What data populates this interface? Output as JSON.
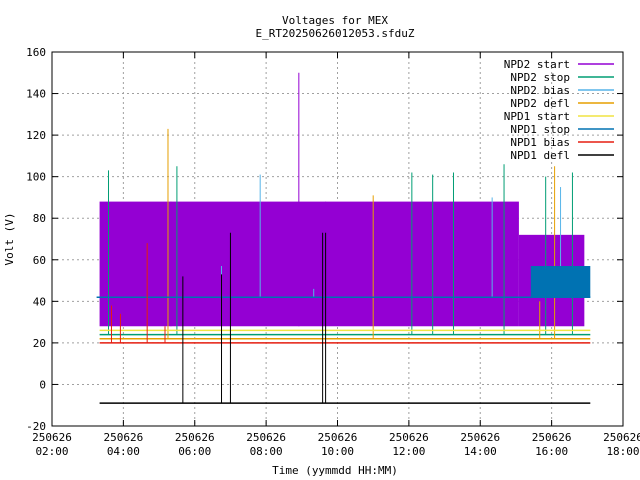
{
  "chart_data": {
    "type": "line",
    "title": "Voltages for MEX",
    "subtitle": "E_RT20250626012053.sfduZ",
    "xlabel": "Time (yymmdd HH:MM)",
    "ylabel": "Volt (V)",
    "xlim": [
      "250626 02:00",
      "250626 18:00"
    ],
    "ylim": [
      -20,
      160
    ],
    "grid": true,
    "legend_position": "top-right",
    "y_ticks": [
      "-20",
      "0",
      "20",
      "40",
      "60",
      "80",
      "100",
      "120",
      "140",
      "160"
    ],
    "x_ticks": [
      {
        "date": "250626",
        "time": "02:00"
      },
      {
        "date": "250626",
        "time": "04:00"
      },
      {
        "date": "250626",
        "time": "06:00"
      },
      {
        "date": "250626",
        "time": "08:00"
      },
      {
        "date": "250626",
        "time": "10:00"
      },
      {
        "date": "250626",
        "time": "12:00"
      },
      {
        "date": "250626",
        "time": "14:00"
      },
      {
        "date": "250626",
        "time": "16:00"
      },
      {
        "date": "250626",
        "time": "18:00"
      }
    ],
    "series": [
      {
        "name": "NPD2 start",
        "color": "#9400d3",
        "bands": [
          {
            "from": "03:20",
            "to": "15:05",
            "low": 28,
            "high": 88
          },
          {
            "from": "15:05",
            "to": "16:55",
            "low": 28,
            "high": 72
          }
        ],
        "spikes": [
          {
            "t": "08:55",
            "v": 150
          },
          {
            "t": "05:20",
            "v": 88
          },
          {
            "t": "09:40",
            "v": 88
          }
        ]
      },
      {
        "name": "NPD2 stop",
        "color": "#009e73",
        "baseline": [
          {
            "t": "03:20",
            "v": 24
          },
          {
            "t": "17:05",
            "v": 24
          }
        ],
        "spikes": [
          {
            "t": "03:35",
            "v": 103
          },
          {
            "t": "05:30",
            "v": 105
          },
          {
            "t": "12:05",
            "v": 102
          },
          {
            "t": "12:40",
            "v": 101
          },
          {
            "t": "13:15",
            "v": 102
          },
          {
            "t": "14:40",
            "v": 106
          },
          {
            "t": "15:50",
            "v": 100
          },
          {
            "t": "16:35",
            "v": 102
          }
        ]
      },
      {
        "name": "NPD2 bias",
        "color": "#56b4e9",
        "baseline": [
          {
            "t": "03:20",
            "v": 42
          },
          {
            "t": "17:05",
            "v": 42
          }
        ],
        "spikes": [
          {
            "t": "06:45",
            "v": 57
          },
          {
            "t": "07:50",
            "v": 101
          },
          {
            "t": "09:20",
            "v": 46
          },
          {
            "t": "14:20",
            "v": 90
          },
          {
            "t": "16:15",
            "v": 95
          }
        ]
      },
      {
        "name": "NPD2 defl",
        "color": "#e69f00",
        "baseline": [
          {
            "t": "03:20",
            "v": 22
          },
          {
            "t": "17:05",
            "v": 22
          }
        ],
        "spikes": [
          {
            "t": "05:15",
            "v": 123
          },
          {
            "t": "11:00",
            "v": 91
          },
          {
            "t": "15:40",
            "v": 40
          },
          {
            "t": "16:05",
            "v": 105
          }
        ]
      },
      {
        "name": "NPD1 start",
        "color": "#f0e442",
        "baseline": [
          {
            "t": "03:20",
            "v": 26
          },
          {
            "t": "17:05",
            "v": 26
          }
        ],
        "spikes": []
      },
      {
        "name": "NPD1 stop",
        "color": "#0072b2",
        "baseline": [
          {
            "t": "03:15",
            "v": 42
          },
          {
            "t": "17:05",
            "v": 42
          }
        ],
        "bands": [
          {
            "from": "15:25",
            "to": "17:05",
            "low": 42,
            "high": 57
          }
        ],
        "spikes": []
      },
      {
        "name": "NPD1 bias",
        "color": "#e51e10",
        "baseline": [
          {
            "t": "03:20",
            "v": 20
          },
          {
            "t": "17:05",
            "v": 20
          }
        ],
        "spikes": [
          {
            "t": "03:40",
            "v": 38
          },
          {
            "t": "03:55",
            "v": 34
          },
          {
            "t": "04:40",
            "v": 68
          },
          {
            "t": "05:10",
            "v": 28
          }
        ]
      },
      {
        "name": "NPD1 defl",
        "color": "#000000",
        "baseline": [
          {
            "t": "03:20",
            "v": -9
          },
          {
            "t": "17:05",
            "v": -9
          }
        ],
        "spikes": [
          {
            "t": "05:40",
            "v": 52
          },
          {
            "t": "06:45",
            "v": 53
          },
          {
            "t": "07:00",
            "v": 73
          },
          {
            "t": "09:35",
            "v": 73
          },
          {
            "t": "09:40",
            "v": 73
          }
        ]
      }
    ]
  }
}
